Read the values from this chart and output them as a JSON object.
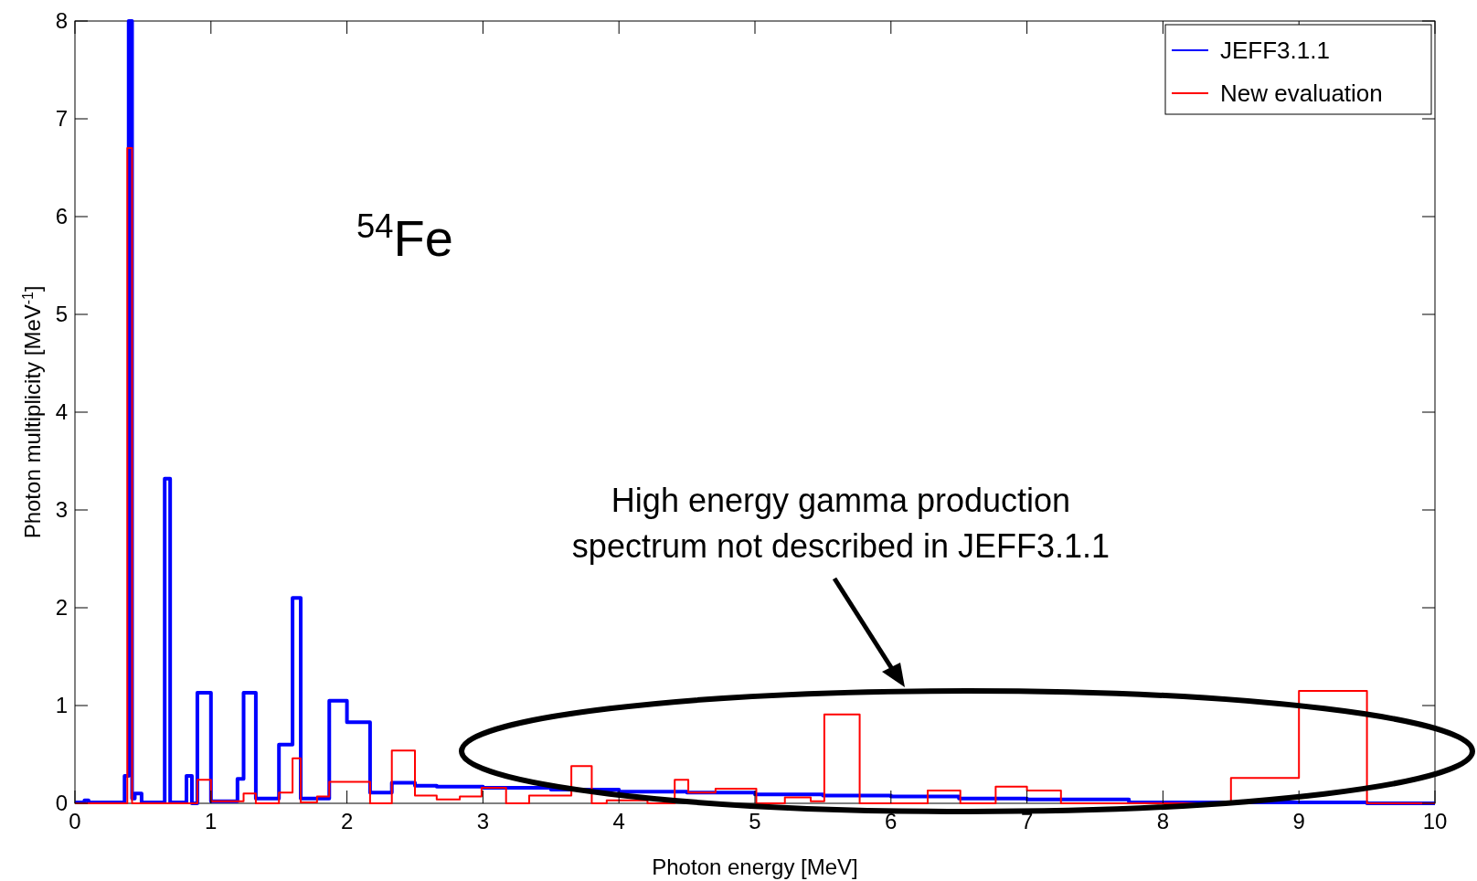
{
  "chart_data": {
    "type": "step",
    "xlabel": "Photon energy [MeV]",
    "ylabel": "Photon multiplicity [MeV$^{-1}$]",
    "xlim": [
      0,
      10
    ],
    "ylim": [
      0,
      8
    ],
    "xticks": [
      0,
      1,
      2,
      3,
      4,
      5,
      6,
      7,
      8,
      9,
      10
    ],
    "yticks": [
      0,
      1,
      2,
      3,
      4,
      5,
      6,
      7,
      8
    ],
    "grid": false,
    "legend": "top right",
    "series": [
      {
        "name": "JEFF3.1.1",
        "color": "#0000ff",
        "x": [
          0,
          0.07,
          0.1,
          0.365,
          0.395,
          0.42,
          0.44,
          0.49,
          0.52,
          0.66,
          0.7,
          0.82,
          0.86,
          0.9,
          1.0,
          1.195,
          1.24,
          1.33,
          1.5,
          1.6,
          1.66,
          1.87,
          2.0,
          2.17,
          2.33,
          2.5,
          2.66,
          3.0,
          3.5,
          4.0,
          4.5,
          5.0,
          5.5,
          6.0,
          6.5,
          7.0,
          7.75,
          9.5,
          10
        ],
        "values": [
          0.01,
          0.03,
          0.01,
          0.28,
          8,
          0.05,
          0.1,
          0.01,
          0.01,
          3.32,
          0.01,
          0.28,
          0,
          1.13,
          0.02,
          0.25,
          1.13,
          0.05,
          0.6,
          2.1,
          0.05,
          1.05,
          0.83,
          0.11,
          0.21,
          0.18,
          0.17,
          0.16,
          0.14,
          0.12,
          0.11,
          0.09,
          0.08,
          0.07,
          0.05,
          0.04,
          0.01,
          0,
          0
        ]
      },
      {
        "name": "New evaluation",
        "color": "#ff0000",
        "x": [
          0,
          0.385,
          0.42,
          0.9,
          1.0,
          1.24,
          1.33,
          1.5,
          1.6,
          1.66,
          1.78,
          1.87,
          2.17,
          2.33,
          2.5,
          2.66,
          2.83,
          2.99,
          3.17,
          3.34,
          3.65,
          3.8,
          3.91,
          4.21,
          4.41,
          4.51,
          4.71,
          5.01,
          5.22,
          5.41,
          5.51,
          5.77,
          6.27,
          6.51,
          6.77,
          7.0,
          7.25,
          8.5,
          9.0,
          9.5,
          10
        ],
        "values": [
          0,
          6.7,
          0,
          0.24,
          0.02,
          0.1,
          0,
          0.11,
          0.46,
          0.01,
          0.07,
          0.22,
          0,
          0.54,
          0.08,
          0.04,
          0.07,
          0.16,
          0,
          0.08,
          0.38,
          0,
          0.03,
          0,
          0.24,
          0.11,
          0.15,
          0,
          0.06,
          0.02,
          0.91,
          0,
          0.13,
          0,
          0.17,
          0.13,
          0,
          0.26,
          1.15,
          0,
          0
        ]
      }
    ],
    "annotations": [
      "$^{54}$Fe",
      "High energy gamma production\nspectrum not described in JEFF3.1.1"
    ]
  }
}
